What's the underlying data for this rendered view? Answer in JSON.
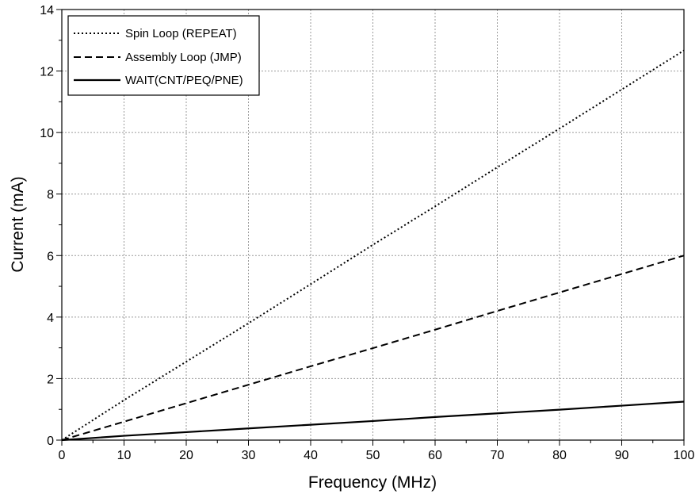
{
  "chart_data": {
    "type": "line",
    "title": "",
    "xlabel": "Frequency (MHz)",
    "ylabel": "Current (mA)",
    "xlim": [
      0,
      100
    ],
    "ylim": [
      0,
      14
    ],
    "x_ticks": [
      0,
      10,
      20,
      30,
      40,
      50,
      60,
      70,
      80,
      90,
      100
    ],
    "x_tick_labels": [
      "0",
      "10",
      "20",
      "30",
      "40",
      "50",
      "60",
      "70",
      "80",
      "90",
      "100"
    ],
    "y_ticks": [
      0,
      2,
      4,
      6,
      8,
      10,
      12,
      14
    ],
    "y_tick_labels": [
      "0",
      "2",
      "4",
      "6",
      "8",
      "10",
      "12",
      "14"
    ],
    "grid": true,
    "legend_position": "top-left",
    "series": [
      {
        "name": "Spin Loop (REPEAT)",
        "line_style": "dotted",
        "color": "#000000",
        "x": [
          0,
          10,
          20,
          30,
          40,
          50,
          60,
          70,
          80,
          90,
          100
        ],
        "y": [
          0,
          1.3,
          2.55,
          3.8,
          5.07,
          6.35,
          7.6,
          8.87,
          10.13,
          11.4,
          12.67
        ]
      },
      {
        "name": "Assembly Loop (JMP)",
        "line_style": "dashed",
        "color": "#000000",
        "x": [
          0,
          10,
          20,
          30,
          40,
          50,
          60,
          70,
          80,
          90,
          100
        ],
        "y": [
          0,
          0.6,
          1.2,
          1.8,
          2.4,
          2.99,
          3.59,
          4.2,
          4.8,
          5.4,
          6.0
        ]
      },
      {
        "name": "WAIT(CNT/PEQ/PNE)",
        "line_style": "solid",
        "color": "#000000",
        "x": [
          0,
          10,
          20,
          30,
          40,
          50,
          60,
          70,
          80,
          90,
          100
        ],
        "y": [
          0,
          0.14,
          0.26,
          0.38,
          0.5,
          0.62,
          0.75,
          0.87,
          0.99,
          1.12,
          1.25
        ]
      }
    ]
  }
}
